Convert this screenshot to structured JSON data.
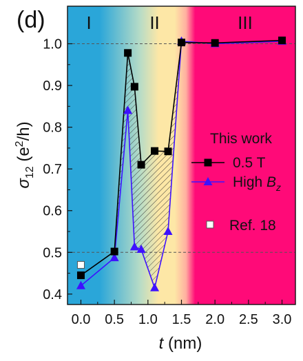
{
  "panel_label": "(d)",
  "regions": [
    {
      "label": "I",
      "x_center": 0.12
    },
    {
      "label": "II",
      "x_center": 1.1
    },
    {
      "label": "III",
      "x_center": 2.45
    }
  ],
  "colors": {
    "region_I": "#2aa6d9",
    "region_II": "#fde7a6",
    "region_III": "#ff0a78",
    "series_black": "#000000",
    "series_blue": "#3d11ff",
    "hatch": "#333333",
    "axis": "#111111"
  },
  "legend": {
    "heading": "This work",
    "items": [
      {
        "label": "0.5 T",
        "marker": "square-filled",
        "color": "#000000"
      },
      {
        "label_main": "High ",
        "label_italic_B": "B",
        "label_sub": "z",
        "marker": "triangle",
        "color": "#3d11ff"
      }
    ],
    "ref_label": "Ref. 18",
    "ref_marker": "square-open"
  },
  "chart_data": {
    "type": "line",
    "xlabel_var": "t",
    "xlabel_unit": " (nm)",
    "ylabel_var": "σ",
    "ylabel_sub": "12",
    "ylabel_unit_pre": " (e",
    "ylabel_unit_sup": "2",
    "ylabel_unit_post": "/h)",
    "x_ticks": [
      0.0,
      0.5,
      1.0,
      1.5,
      2.0,
      2.5,
      3.0
    ],
    "x_tick_labels": [
      "0.0",
      "0.5",
      "1.0",
      "1.5",
      "2.0",
      "2.5",
      "3.0"
    ],
    "y_ticks": [
      0.4,
      0.5,
      0.6,
      0.7,
      0.8,
      0.9,
      1.0
    ],
    "y_tick_labels": [
      "0.4",
      "0.5",
      "0.6",
      "0.7",
      "0.8",
      "0.9",
      "1.0"
    ],
    "xlim": [
      -0.2,
      3.2
    ],
    "ylim": [
      0.375,
      1.09
    ],
    "reference_lines_y": [
      0.5,
      1.0
    ],
    "series": [
      {
        "name": "0.5 T",
        "x": [
          0.0,
          0.5,
          0.7,
          0.8,
          0.9,
          1.1,
          1.3,
          1.5,
          2.0,
          3.0
        ],
        "y": [
          0.445,
          0.502,
          0.978,
          0.897,
          0.71,
          0.743,
          0.742,
          1.003,
          1.002,
          1.008
        ]
      },
      {
        "name": "High Bz",
        "x": [
          0.0,
          0.5,
          0.7,
          0.8,
          0.9,
          1.1,
          1.3,
          1.5,
          2.0,
          3.0
        ],
        "y": [
          0.42,
          0.487,
          0.84,
          0.513,
          0.507,
          0.415,
          0.55,
          1.006,
          1.0,
          1.006
        ]
      },
      {
        "name": "Ref. 18",
        "x": [
          0.0
        ],
        "y": [
          0.47
        ]
      }
    ],
    "hatched_region_x": [
      0.5,
      1.5
    ]
  }
}
